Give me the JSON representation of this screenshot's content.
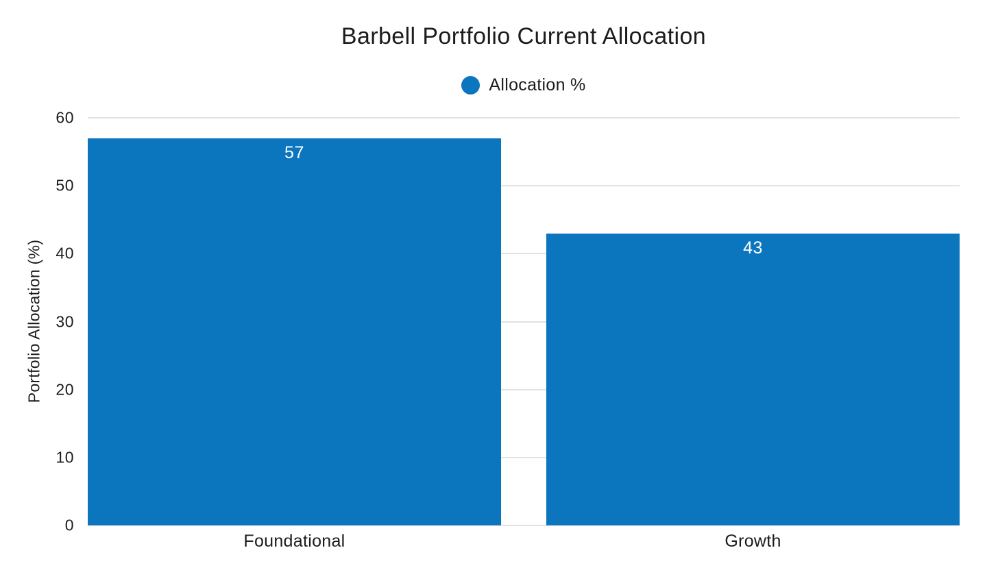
{
  "chart_data": {
    "type": "bar",
    "title": "Barbell Portfolio Current Allocation",
    "legend": [
      {
        "label": "Allocation %",
        "color": "#0b76bd"
      }
    ],
    "legend_position": "top-center",
    "categories": [
      "Foundational",
      "Growth"
    ],
    "values": [
      57,
      43
    ],
    "xlabel": "",
    "ylabel": "Portfolio Allocation (%)",
    "ylim": [
      0,
      60
    ],
    "yticks": [
      0,
      10,
      20,
      30,
      40,
      50,
      60
    ],
    "grid": "horizontal",
    "bar_color": "#0b76bd",
    "value_label_color": "#ffffff",
    "bar_width_pct": 47.4
  },
  "colors": {
    "background": "#ffffff",
    "text": "#1c1c1c",
    "gridline": "#e2e2e2",
    "accent_blue": "#0b76bd"
  }
}
